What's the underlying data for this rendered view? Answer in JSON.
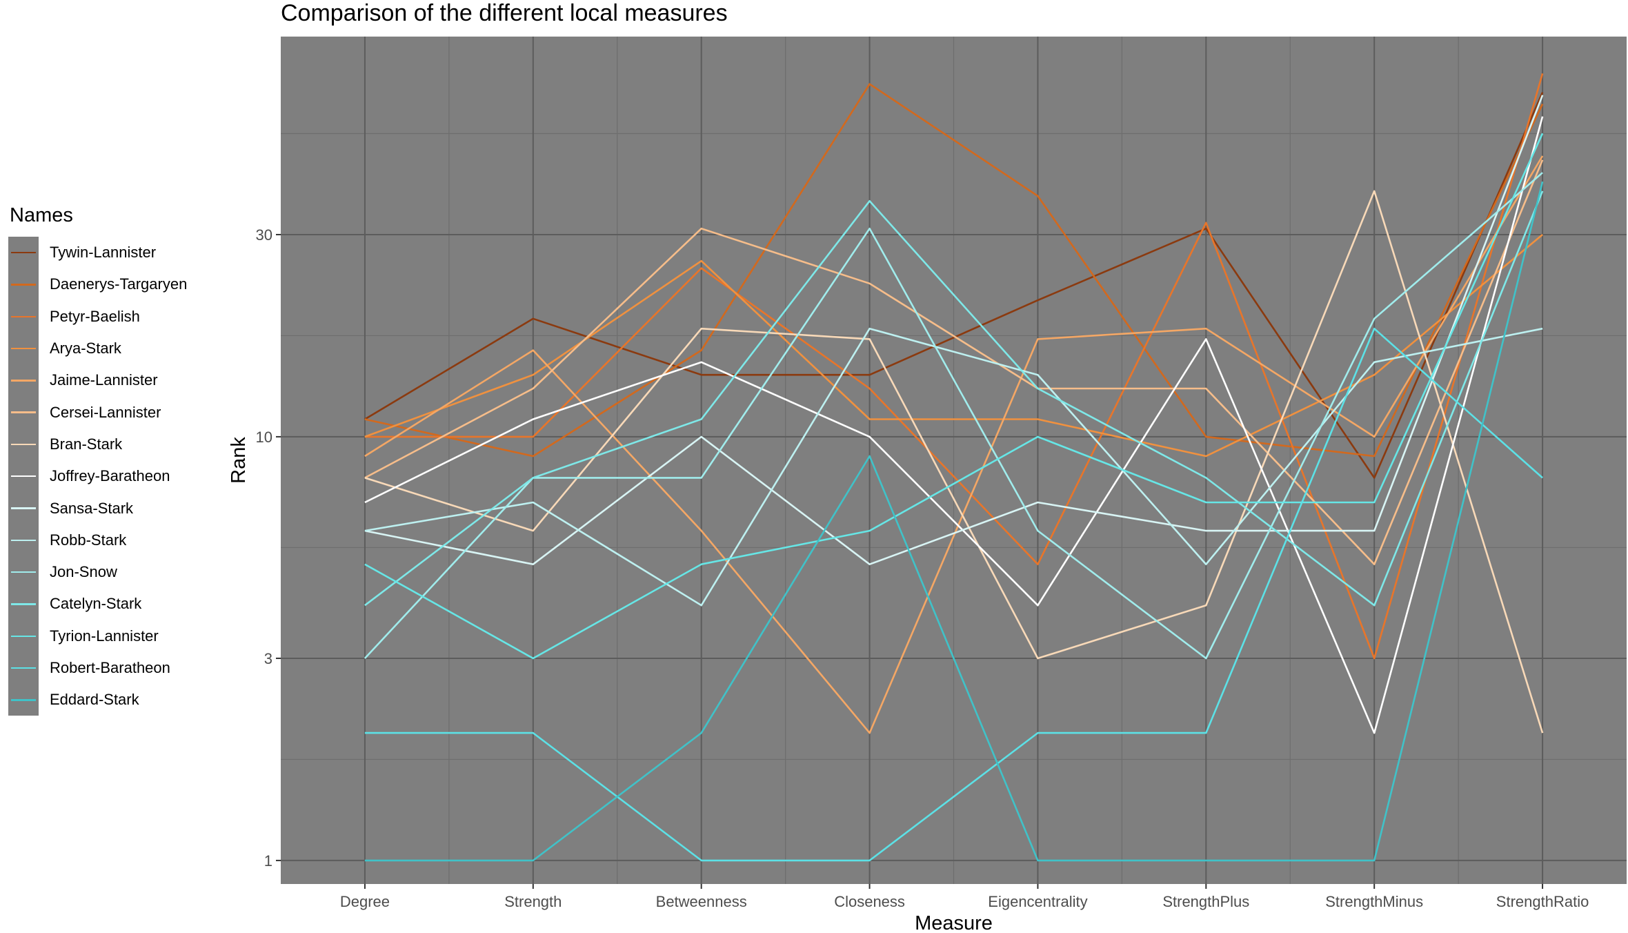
{
  "chart_data": {
    "type": "line",
    "title": "Comparison of the different local measures",
    "xlabel": "Measure",
    "ylabel": "Rank",
    "y_scale": "log",
    "ylim": [
      0.88,
      88
    ],
    "y_ticks": [
      1,
      3,
      10,
      30
    ],
    "y_tick_labels": [
      "1",
      "3",
      "10",
      "30"
    ],
    "categories": [
      "Degree",
      "Strength",
      "Betweenness",
      "Closeness",
      "Eigencentrality",
      "StrengthPlus",
      "StrengthMinus",
      "StrengthRatio"
    ],
    "legend_title": "Names",
    "legend_position": "left",
    "panel_background": "#7f7f7f",
    "series": [
      {
        "name": "Tywin-Lannister",
        "color": "#8B3A0F",
        "values": [
          11,
          19,
          14,
          14,
          21,
          31,
          8,
          65
        ]
      },
      {
        "name": "Daenerys-Targaryen",
        "color": "#D2691E",
        "values": [
          11,
          9,
          16,
          68,
          37,
          10,
          9,
          61
        ]
      },
      {
        "name": "Petyr-Baelish",
        "color": "#E8752A",
        "values": [
          10,
          10,
          25,
          13,
          5,
          32,
          3,
          72
        ]
      },
      {
        "name": "Arya-Stark",
        "color": "#F0913F",
        "values": [
          10,
          14,
          26,
          11,
          11,
          9,
          14,
          30
        ]
      },
      {
        "name": "Jaime-Lannister",
        "color": "#F4A765",
        "values": [
          9,
          16,
          6,
          2,
          17,
          18,
          10,
          46
        ]
      },
      {
        "name": "Cersei-Lannister",
        "color": "#F6BD8A",
        "values": [
          8,
          13,
          31,
          23,
          13,
          13,
          5,
          45
        ]
      },
      {
        "name": "Bran-Stark",
        "color": "#F8D9B8",
        "values": [
          8,
          6,
          18,
          17,
          3,
          4,
          38,
          2
        ]
      },
      {
        "name": "Joffrey-Baratheon",
        "color": "#FFFFFF",
        "values": [
          7,
          11,
          15,
          10,
          4,
          17,
          2,
          57
        ]
      },
      {
        "name": "Sansa-Stark",
        "color": "#D8F4F4",
        "values": [
          6,
          5,
          10,
          5,
          7,
          6,
          6,
          64
        ]
      },
      {
        "name": "Robb-Stark",
        "color": "#BDF0F0",
        "values": [
          6,
          7,
          4,
          18,
          14,
          5,
          15,
          18
        ]
      },
      {
        "name": "Jon-Snow",
        "color": "#A0ECEC",
        "values": [
          3,
          8,
          8,
          31,
          6,
          3,
          19,
          42
        ]
      },
      {
        "name": "Catelyn-Stark",
        "color": "#7EE8E8",
        "values": [
          4,
          8,
          11,
          36,
          13,
          8,
          4,
          38
        ]
      },
      {
        "name": "Tyrion-Lannister",
        "color": "#66E6E6",
        "values": [
          5,
          3,
          5,
          6,
          10,
          7,
          7,
          52
        ]
      },
      {
        "name": "Robert-Baratheon",
        "color": "#5CE1E6",
        "values": [
          2,
          2,
          1,
          1,
          2,
          2,
          18,
          8
        ]
      },
      {
        "name": "Eddard-Stark",
        "color": "#40C2C8",
        "values": [
          1,
          1,
          2,
          9,
          1,
          1,
          1,
          40
        ]
      }
    ]
  }
}
